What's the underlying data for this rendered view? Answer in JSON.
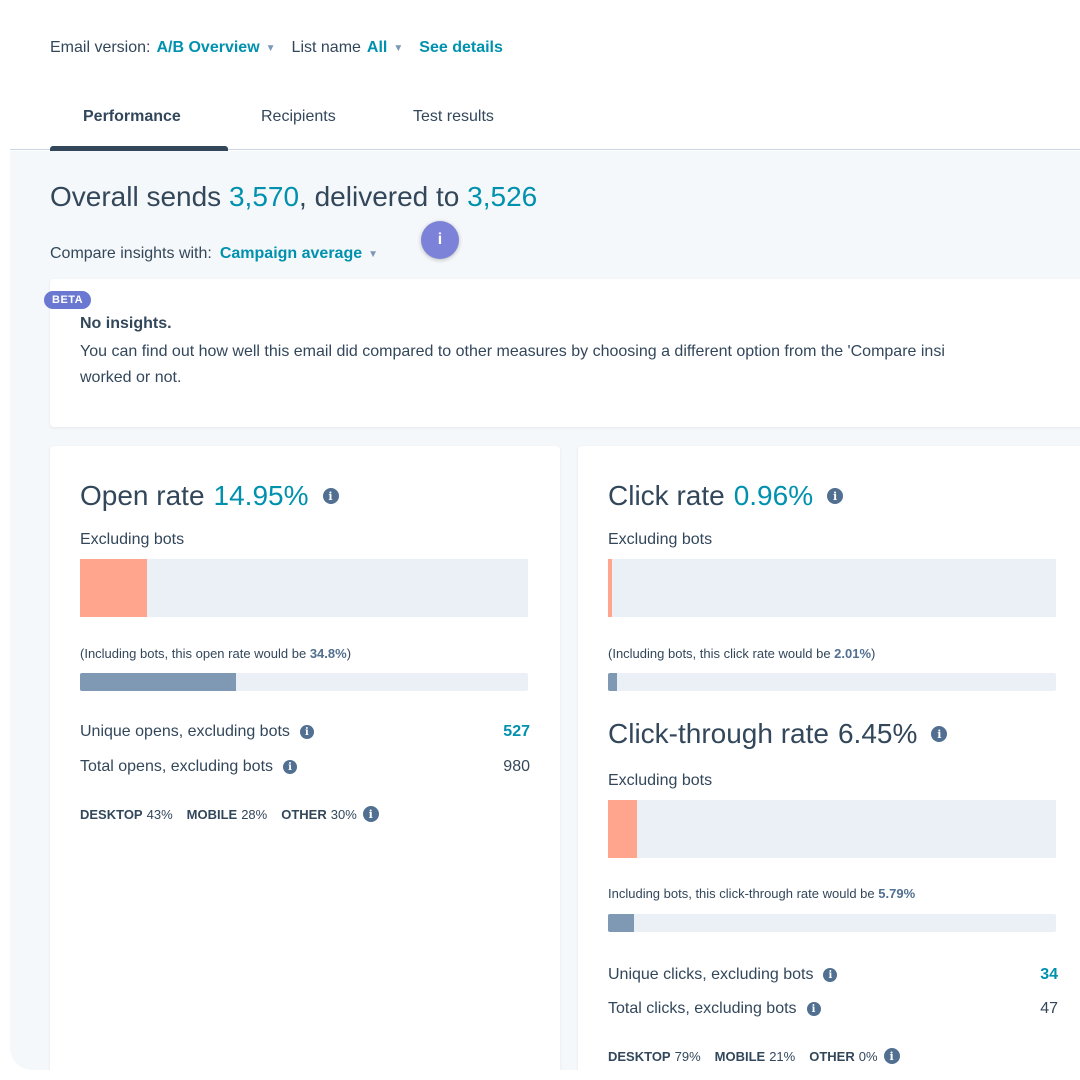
{
  "topbar": {
    "email_version_label": "Email version:",
    "email_version_value": "A/B Overview",
    "list_name_label": "List name",
    "list_name_value": "All",
    "see_details": "See details"
  },
  "tabs": [
    {
      "label": "Performance",
      "active": true
    },
    {
      "label": "Recipients",
      "active": false
    },
    {
      "label": "Test results",
      "active": false
    }
  ],
  "headline": {
    "prefix": "Overall sends",
    "sends": "3,570",
    "middle": ", delivered to",
    "delivered": "3,526"
  },
  "compare": {
    "label": "Compare insights with:",
    "value": "Campaign average",
    "info": "i"
  },
  "insights": {
    "badge": "BETA",
    "title": "No insights.",
    "body": "You can find out how well this email did compared to other measures by choosing a different option from the 'Compare insi",
    "body2": "worked or not."
  },
  "open_rate": {
    "title": "Open rate",
    "value": "14.95%",
    "excluding": "Excluding bots",
    "bar_fraction": 0.1495,
    "including_note_prefix": "(Including bots, this open rate would be ",
    "including_value": "34.8%",
    "including_note_suffix": ")",
    "including_fraction": 0.348,
    "unique_label": "Unique opens, excluding bots",
    "unique_value": "527",
    "total_label": "Total opens, excluding bots",
    "total_value": "980",
    "devices": [
      {
        "name": "DESKTOP",
        "pct": "43%"
      },
      {
        "name": "MOBILE",
        "pct": "28%"
      },
      {
        "name": "OTHER",
        "pct": "30%"
      }
    ]
  },
  "click_rate": {
    "title": "Click rate",
    "value": "0.96%",
    "excluding": "Excluding bots",
    "bar_fraction": 0.0096,
    "including_note_prefix": "(Including bots, this click rate would be ",
    "including_value": "2.01%",
    "including_note_suffix": ")",
    "including_fraction": 0.0201
  },
  "ctr": {
    "title": "Click-through rate",
    "value": "6.45%",
    "excluding": "Excluding bots",
    "bar_fraction": 0.0645,
    "including_note_prefix": "Including bots, this click-through rate would be ",
    "including_value": "5.79%",
    "including_fraction": 0.0579,
    "unique_label": "Unique clicks, excluding bots",
    "unique_value": "34",
    "total_label": "Total clicks, excluding bots",
    "total_value": "47",
    "devices": [
      {
        "name": "DESKTOP",
        "pct": "79%"
      },
      {
        "name": "MOBILE",
        "pct": "21%"
      },
      {
        "name": "OTHER",
        "pct": "0%"
      }
    ]
  },
  "colors": {
    "accent": "#0091ae",
    "bar_excluding": "#ffa58d",
    "bar_including": "#7f98b4",
    "bar_track": "#eaf0f6",
    "beta_badge": "#6a78d1"
  },
  "icons": {
    "caret": "caret-down-icon",
    "info": "info-circle-icon"
  }
}
